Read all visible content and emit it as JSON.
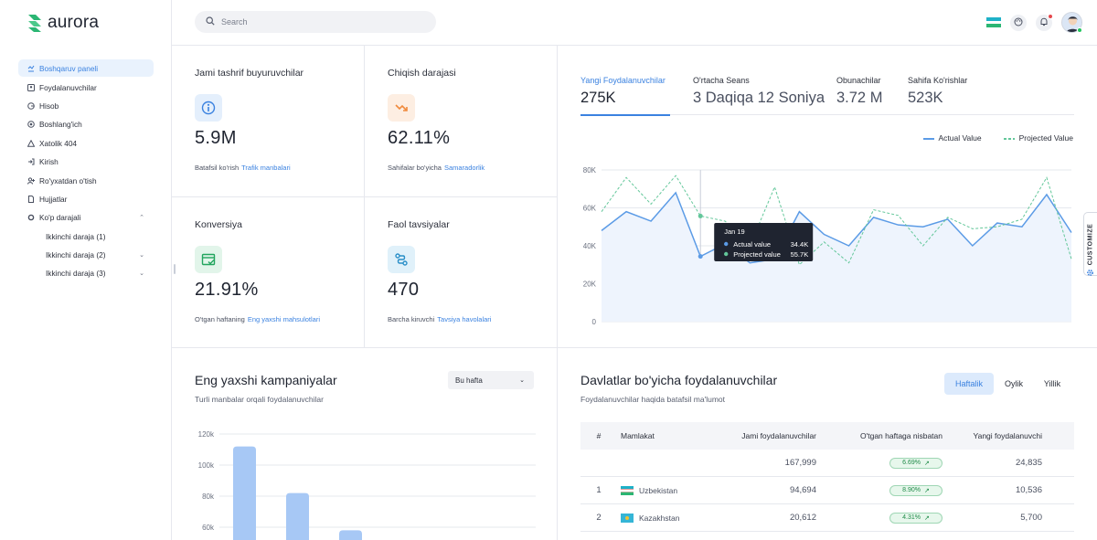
{
  "app": {
    "name": "aurora"
  },
  "sidebar": {
    "items": [
      {
        "label": "Boshqaruv paneli",
        "icon": "dashboard-icon"
      },
      {
        "label": "Foydalanuvchilar",
        "icon": "users-icon"
      },
      {
        "label": "Hisob",
        "icon": "account-icon"
      },
      {
        "label": "Boshlang'ich",
        "icon": "starter-icon"
      },
      {
        "label": "Xatolik 404",
        "icon": "warning-icon"
      },
      {
        "label": "Kirish",
        "icon": "login-icon"
      },
      {
        "label": "Ro'yxatdan o'tish",
        "icon": "user-plus-icon"
      },
      {
        "label": "Hujjatlar",
        "icon": "document-icon"
      },
      {
        "label": "Ko'p darajali",
        "icon": "layers-icon"
      }
    ],
    "subitems": [
      {
        "label": "Ikkinchi daraja (1)"
      },
      {
        "label": "Ikkinchi daraja (2)"
      },
      {
        "label": "Ikkinchi daraja (3)"
      }
    ]
  },
  "search": {
    "placeholder": "Search",
    "value": ""
  },
  "stats": [
    {
      "title": "Jami tashrif buyuruvchilar",
      "value": "5.9M",
      "foot_text": "Batafsil ko'rish",
      "foot_link": "Trafik manbalari",
      "icon": "info-icon",
      "color": "#3b82e0",
      "bg": "#e4effc"
    },
    {
      "title": "Chiqish darajasi",
      "value": "62.11%",
      "foot_text": "Sahifalar bo'yicha",
      "foot_link": "Samaradorlik",
      "icon": "trend-down-icon",
      "color": "#f08a3c",
      "bg": "#fdeee2"
    },
    {
      "title": "Konversiya",
      "value": "21.91%",
      "foot_text": "O'tgan haftaning",
      "foot_link": "Eng yaxshi mahsulotlari",
      "icon": "checklist-icon",
      "color": "#22a55e",
      "bg": "#e2f5ea"
    },
    {
      "title": "Faol tavsiyalar",
      "value": "470",
      "foot_text": "Barcha kiruvchi",
      "foot_link": "Tavsiya havolalari",
      "icon": "route-icon",
      "color": "#2a8fc8",
      "bg": "#e0f1fa"
    }
  ],
  "metric_tabs": [
    {
      "label": "Yangi Foydalanuvchilar",
      "value": "275K"
    },
    {
      "label": "O'rtacha Seans",
      "value": "3 Daqiqa 12 Soniya"
    },
    {
      "label": "Obunachilar",
      "value": "3.72 M"
    },
    {
      "label": "Sahifa Ko'rishlar",
      "value": "523K"
    }
  ],
  "customize_label": "CUSTOMIZE",
  "line_chart": {
    "chart_data": {
      "type": "line",
      "ylim": [
        0,
        80000
      ],
      "yticks": [
        "80K",
        "60K",
        "40K",
        "20K",
        "0"
      ],
      "series": [
        {
          "name": "Actual Value",
          "color": "#5b9be6",
          "values": [
            48000,
            58000,
            53000,
            68000,
            34400,
            41000,
            31000,
            33000,
            58000,
            46000,
            40000,
            55000,
            51000,
            50000,
            54000,
            40000,
            52000,
            50000,
            67000,
            47000
          ]
        },
        {
          "name": "Projected Value",
          "color": "#63c79a",
          "values": [
            58000,
            76000,
            62000,
            77000,
            55700,
            53000,
            40000,
            71000,
            30000,
            42000,
            31000,
            59000,
            56000,
            40000,
            55000,
            49000,
            50000,
            54000,
            76000,
            33000
          ]
        }
      ]
    },
    "tooltip": {
      "date": "Jan 19",
      "actual_label": "Actual value",
      "actual_value": "34.4K",
      "projected_label": "Projected value",
      "projected_value": "55.7K"
    }
  },
  "campaigns": {
    "title": "Eng yaxshi kampaniyalar",
    "subtitle": "Turli manbalar orqali foydalanuvchilar",
    "select_value": "Bu hafta",
    "chart_data": {
      "type": "bar",
      "yticks": [
        "120k",
        "100k",
        "80k",
        "60k"
      ],
      "ylim": [
        50000,
        120000
      ],
      "values": [
        112000,
        82000,
        58000
      ],
      "color": "#a7c8f5"
    }
  },
  "countries": {
    "title": "Davlatlar bo'yicha foydalanuvchilar",
    "subtitle": "Foydalanuvchilar haqida batafsil ma'lumot",
    "periods": [
      "Haftalik",
      "Oylik",
      "Yillik"
    ],
    "headers": [
      "#",
      "Mamlakat",
      "Jami foydalanuvchilar",
      "O'tgan haftaga nisbatan",
      "Yangi foydalanuvchi"
    ],
    "total": {
      "users": "167,999",
      "change": "6.69%",
      "new": "24,835"
    },
    "rows": [
      {
        "num": "1",
        "country": "Uzbekistan",
        "users": "94,694",
        "change": "8.90%",
        "new": "10,536"
      },
      {
        "num": "2",
        "country": "Kazakhstan",
        "users": "20,612",
        "change": "4.31%",
        "new": "5,700"
      }
    ]
  }
}
